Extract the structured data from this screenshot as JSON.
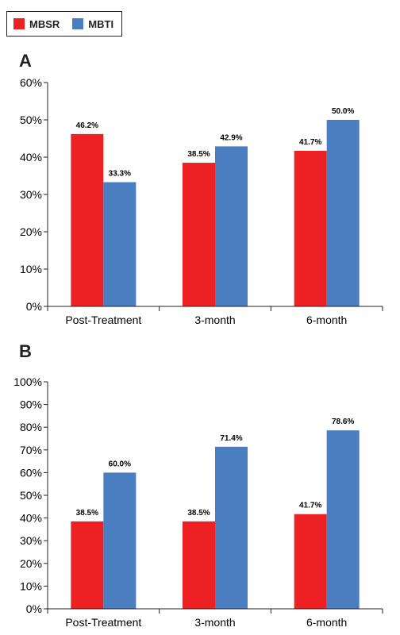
{
  "legend": [
    {
      "name": "MBSR",
      "color": "#ed2024"
    },
    {
      "name": "MBTI",
      "color": "#4a7ec1"
    }
  ],
  "chart_data": [
    {
      "type": "bar",
      "panel_label": "A",
      "categories": [
        "Post-Treatment",
        "3-month",
        "6-month"
      ],
      "series": [
        {
          "name": "MBSR",
          "color": "#ed2024",
          "values": [
            46.2,
            38.5,
            41.7
          ],
          "labels": [
            "46.2%",
            "38.5%",
            "41.7%"
          ]
        },
        {
          "name": "MBTI",
          "color": "#4a7ec1",
          "values": [
            33.3,
            42.9,
            50.0
          ],
          "labels": [
            "33.3%",
            "42.9%",
            "50.0%"
          ]
        }
      ],
      "ylim": [
        0,
        60
      ],
      "yticks": [
        0,
        10,
        20,
        30,
        40,
        50,
        60
      ],
      "ytick_labels": [
        "0%",
        "10%",
        "20%",
        "30%",
        "40%",
        "50%",
        "60%"
      ],
      "grid": false,
      "legend_position": "top-left"
    },
    {
      "type": "bar",
      "panel_label": "B",
      "categories": [
        "Post-Treatment",
        "3-month",
        "6-month"
      ],
      "series": [
        {
          "name": "MBSR",
          "color": "#ed2024",
          "values": [
            38.5,
            38.5,
            41.7
          ],
          "labels": [
            "38.5%",
            "38.5%",
            "41.7%"
          ]
        },
        {
          "name": "MBTI",
          "color": "#4a7ec1",
          "values": [
            60.0,
            71.4,
            78.6
          ],
          "labels": [
            "60.0%",
            "71.4%",
            "78.6%"
          ]
        }
      ],
      "ylim": [
        0,
        100
      ],
      "yticks": [
        0,
        10,
        20,
        30,
        40,
        50,
        60,
        70,
        80,
        90,
        100
      ],
      "ytick_labels": [
        "0%",
        "10%",
        "20%",
        "30%",
        "40%",
        "50%",
        "60%",
        "70%",
        "80%",
        "90%",
        "100%"
      ],
      "grid": false,
      "legend_position": "top-left"
    }
  ]
}
